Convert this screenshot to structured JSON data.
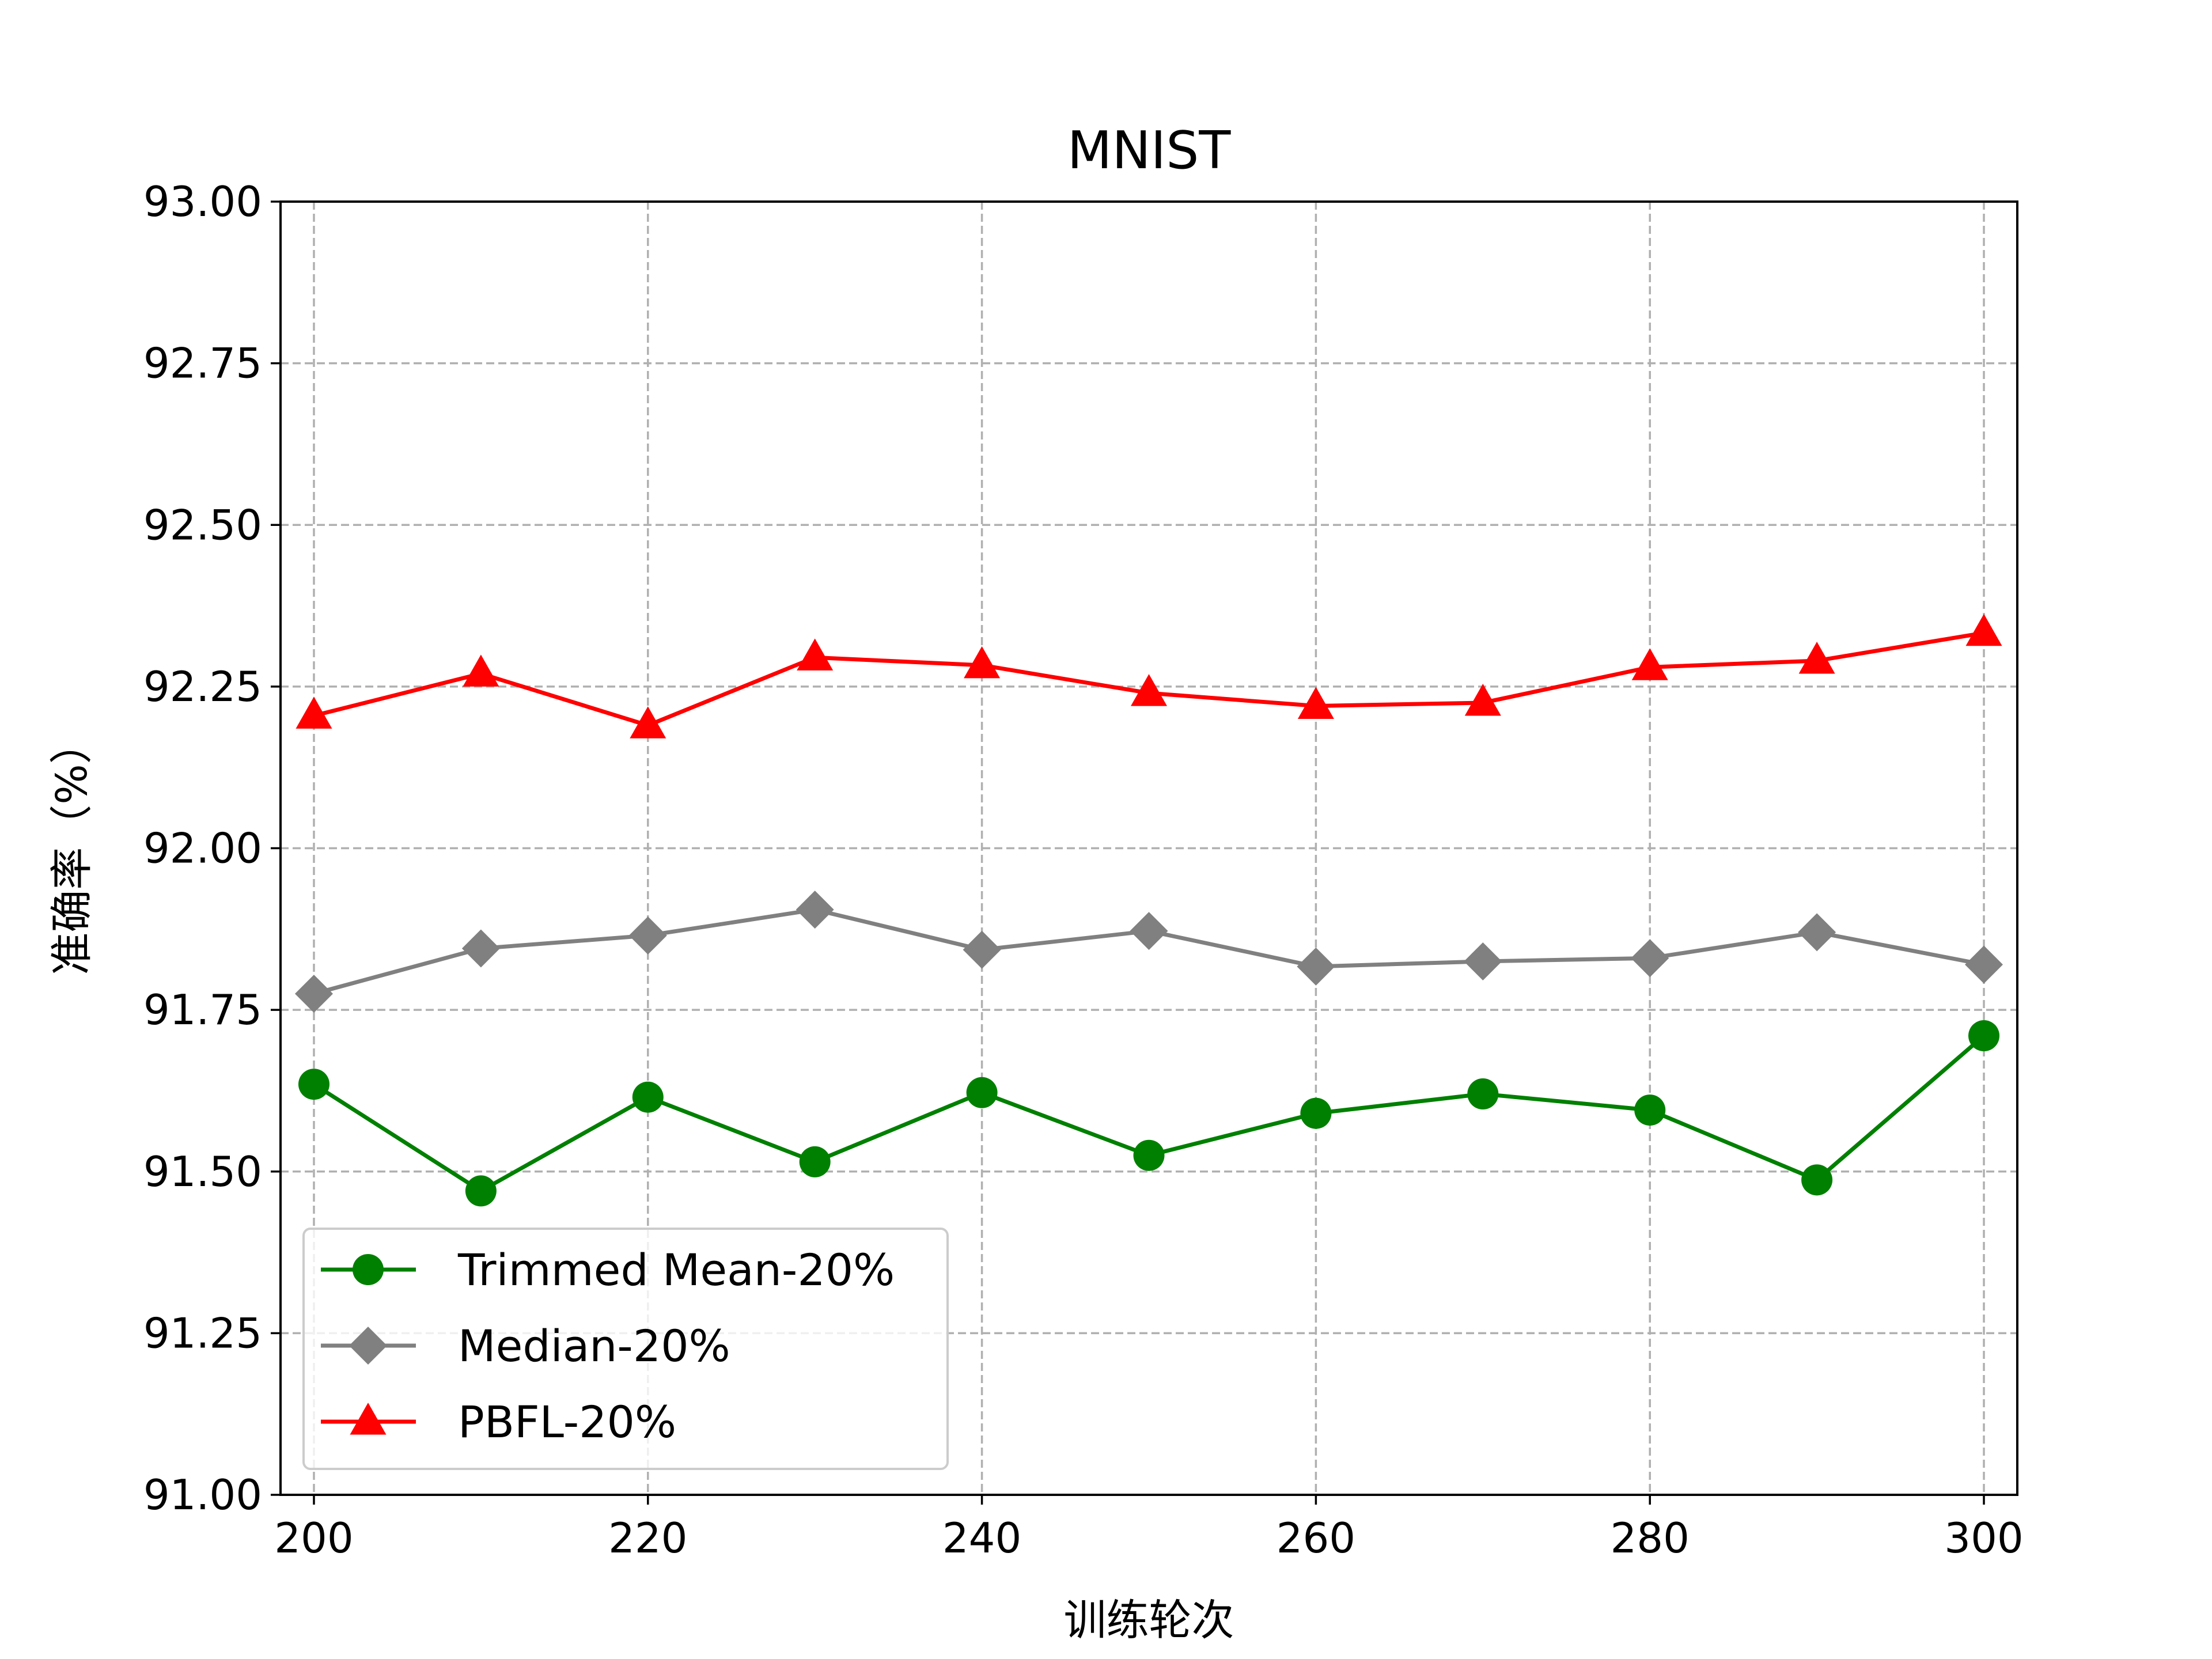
{
  "chart_data": {
    "type": "line",
    "title": "MNIST",
    "xlabel": "训练轮次",
    "ylabel": "准确率（%）",
    "xlim": [
      198,
      302
    ],
    "ylim": [
      91.0,
      93.0
    ],
    "xticks": [
      200,
      220,
      240,
      260,
      280,
      300
    ],
    "xtick_labels": [
      "200",
      "220",
      "240",
      "260",
      "280",
      "300"
    ],
    "yticks": [
      91.0,
      91.25,
      91.5,
      91.75,
      92.0,
      92.25,
      92.5,
      92.75,
      93.0
    ],
    "ytick_labels": [
      "91.00",
      "91.25",
      "91.50",
      "91.75",
      "92.00",
      "92.25",
      "92.50",
      "92.75",
      "93.00"
    ],
    "grid": true,
    "legend_position": "lower-left",
    "x": [
      200,
      210,
      220,
      230,
      240,
      250,
      260,
      270,
      280,
      290,
      300
    ],
    "series": [
      {
        "name": "Trimmed Mean-20%",
        "color": "#008000",
        "marker": "circle",
        "values": [
          91.635,
          91.47,
          91.615,
          91.515,
          91.622,
          91.525,
          91.59,
          91.62,
          91.595,
          91.487,
          91.71
        ]
      },
      {
        "name": "Median-20%",
        "color": "#808080",
        "marker": "diamond",
        "values": [
          91.775,
          91.845,
          91.865,
          91.905,
          91.843,
          91.872,
          91.817,
          91.825,
          91.83,
          91.87,
          91.82
        ]
      },
      {
        "name": "PBFL-20%",
        "color": "#ff0000",
        "marker": "triangle",
        "values": [
          92.205,
          92.27,
          92.19,
          92.295,
          92.283,
          92.24,
          92.22,
          92.225,
          92.28,
          92.29,
          92.333
        ]
      }
    ]
  }
}
